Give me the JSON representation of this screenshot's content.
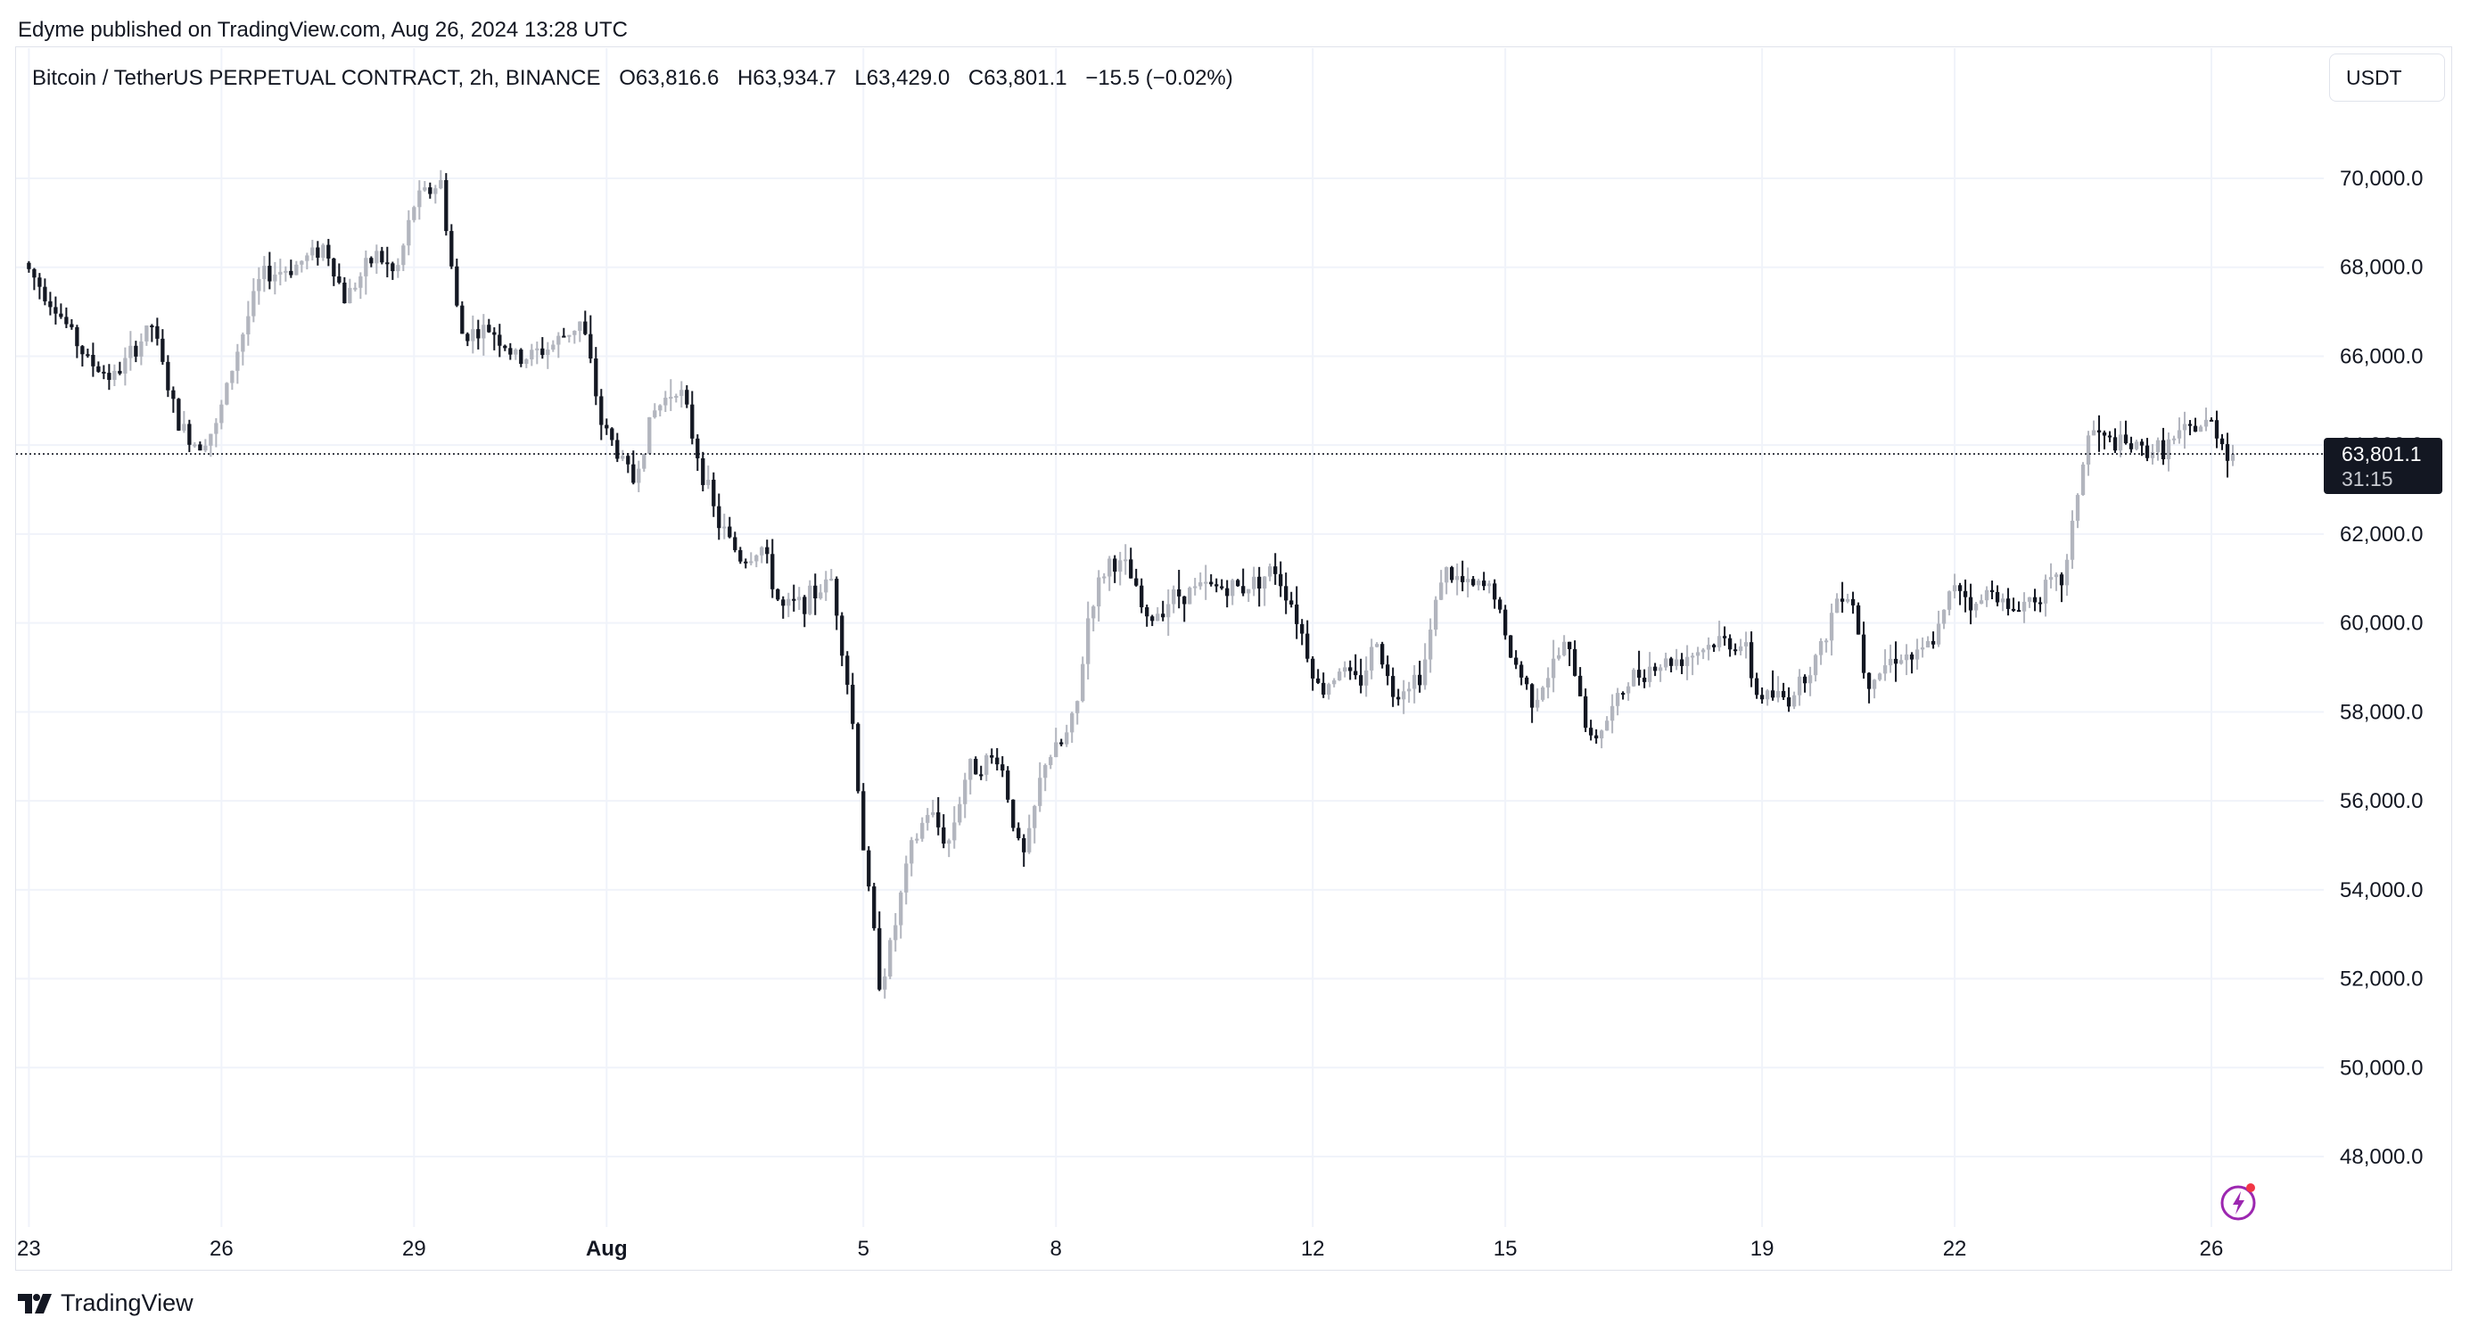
{
  "attribution": "Edyme published on TradingView.com, Aug 26, 2024 13:28 UTC",
  "legend": {
    "symbol": "Bitcoin / TetherUS PERPETUAL CONTRACT, 2h, BINANCE",
    "open": "O63,816.6",
    "high": "H63,934.7",
    "low": "L63,429.0",
    "close": "C63,801.1",
    "change": "−15.5 (−0.02%)"
  },
  "currency_label": "USDT",
  "last_price_label": "63,801.1",
  "countdown": "31:15",
  "brand": "TradingView",
  "colors": {
    "up": "#b2b5be",
    "down": "#131722",
    "grid": "#f0f3fa",
    "axis_text": "#131722"
  },
  "chart_data": {
    "type": "candlestick",
    "symbol": "BTCUSDT.P",
    "timeframe": "2h",
    "ylim": [
      46800,
      71000
    ],
    "y_ticks": [
      48000,
      50000,
      52000,
      54000,
      56000,
      58000,
      60000,
      62000,
      64000,
      66000,
      68000,
      70000
    ],
    "y_tick_labels": [
      "48,000.0",
      "50,000.0",
      "52,000.0",
      "54,000.0",
      "56,000.0",
      "58,000.0",
      "60,000.0",
      "62,000.0",
      "64,000.0",
      "66,000.0",
      "68,000.0",
      "70,000.0"
    ],
    "x_ticks": [
      {
        "label": "23",
        "day": 0
      },
      {
        "label": "26",
        "day": 3
      },
      {
        "label": "29",
        "day": 6
      },
      {
        "label": "Aug",
        "day": 9,
        "bold": true
      },
      {
        "label": "5",
        "day": 13
      },
      {
        "label": "8",
        "day": 16
      },
      {
        "label": "12",
        "day": 20
      },
      {
        "label": "15",
        "day": 23
      },
      {
        "label": "19",
        "day": 27
      },
      {
        "label": "22",
        "day": 30
      },
      {
        "label": "26",
        "day": 34
      }
    ],
    "x_range_days": [
      -0.2,
      35.75
    ],
    "last_price": 63801.1,
    "anchors": [
      [
        0,
        68100
      ],
      [
        0.5,
        67100
      ],
      [
        1,
        65900
      ],
      [
        1.4,
        65500
      ],
      [
        2,
        66700
      ],
      [
        2.4,
        64500
      ],
      [
        2.7,
        64000
      ],
      [
        3.0,
        64400
      ],
      [
        3.3,
        66000
      ],
      [
        3.7,
        67800
      ],
      [
        4.2,
        68000
      ],
      [
        4.7,
        68500
      ],
      [
        5.0,
        67300
      ],
      [
        5.5,
        68300
      ],
      [
        5.8,
        67800
      ],
      [
        6.1,
        69500
      ],
      [
        6.5,
        69900
      ],
      [
        6.8,
        66500
      ],
      [
        7.3,
        66600
      ],
      [
        7.7,
        65900
      ],
      [
        8.2,
        66200
      ],
      [
        8.7,
        66800
      ],
      [
        9.0,
        64500
      ],
      [
        9.5,
        63200
      ],
      [
        9.8,
        64700
      ],
      [
        10.2,
        65400
      ],
      [
        10.5,
        63800
      ],
      [
        10.8,
        62300
      ],
      [
        11.2,
        61400
      ],
      [
        11.5,
        61700
      ],
      [
        11.8,
        60300
      ],
      [
        12.2,
        60500
      ],
      [
        12.6,
        61000
      ],
      [
        12.9,
        58000
      ],
      [
        13.1,
        54700
      ],
      [
        13.35,
        51800
      ],
      [
        13.55,
        53000
      ],
      [
        13.8,
        54800
      ],
      [
        14.1,
        55800
      ],
      [
        14.4,
        55000
      ],
      [
        14.7,
        56700
      ],
      [
        15.2,
        57000
      ],
      [
        15.5,
        55000
      ],
      [
        15.6,
        54700
      ],
      [
        15.9,
        56900
      ],
      [
        16.2,
        57300
      ],
      [
        16.4,
        58000
      ],
      [
        16.6,
        60300
      ],
      [
        16.9,
        61400
      ],
      [
        17.2,
        61200
      ],
      [
        17.5,
        60000
      ],
      [
        17.9,
        60600
      ],
      [
        18.4,
        60800
      ],
      [
        19.0,
        60800
      ],
      [
        19.5,
        61200
      ],
      [
        19.8,
        60300
      ],
      [
        20.2,
        58400
      ],
      [
        20.5,
        59000
      ],
      [
        20.8,
        58600
      ],
      [
        21.1,
        59700
      ],
      [
        21.3,
        58400
      ],
      [
        21.8,
        58900
      ],
      [
        22.1,
        61200
      ],
      [
        22.5,
        60800
      ],
      [
        22.9,
        60800
      ],
      [
        23.1,
        59500
      ],
      [
        23.5,
        58300
      ],
      [
        23.7,
        58700
      ],
      [
        24.0,
        59500
      ],
      [
        24.2,
        58800
      ],
      [
        24.4,
        57300
      ],
      [
        24.7,
        57900
      ],
      [
        25.0,
        58700
      ],
      [
        25.3,
        59000
      ],
      [
        25.8,
        59200
      ],
      [
        26.4,
        59600
      ],
      [
        26.8,
        59500
      ],
      [
        27.0,
        58400
      ],
      [
        27.5,
        58300
      ],
      [
        28.0,
        59400
      ],
      [
        28.3,
        60800
      ],
      [
        28.5,
        60500
      ],
      [
        28.7,
        58700
      ],
      [
        29.2,
        59300
      ],
      [
        29.5,
        59200
      ],
      [
        29.8,
        59700
      ],
      [
        30.1,
        61000
      ],
      [
        30.4,
        60300
      ],
      [
        30.7,
        60900
      ],
      [
        30.9,
        60200
      ],
      [
        31.3,
        60600
      ],
      [
        31.8,
        61000
      ],
      [
        32.0,
        63000
      ],
      [
        32.2,
        64400
      ],
      [
        32.4,
        64100
      ],
      [
        32.7,
        64000
      ],
      [
        33.0,
        63900
      ],
      [
        33.3,
        63900
      ],
      [
        33.6,
        64200
      ],
      [
        33.85,
        64400
      ],
      [
        34.1,
        64500
      ],
      [
        34.35,
        63801
      ]
    ]
  }
}
